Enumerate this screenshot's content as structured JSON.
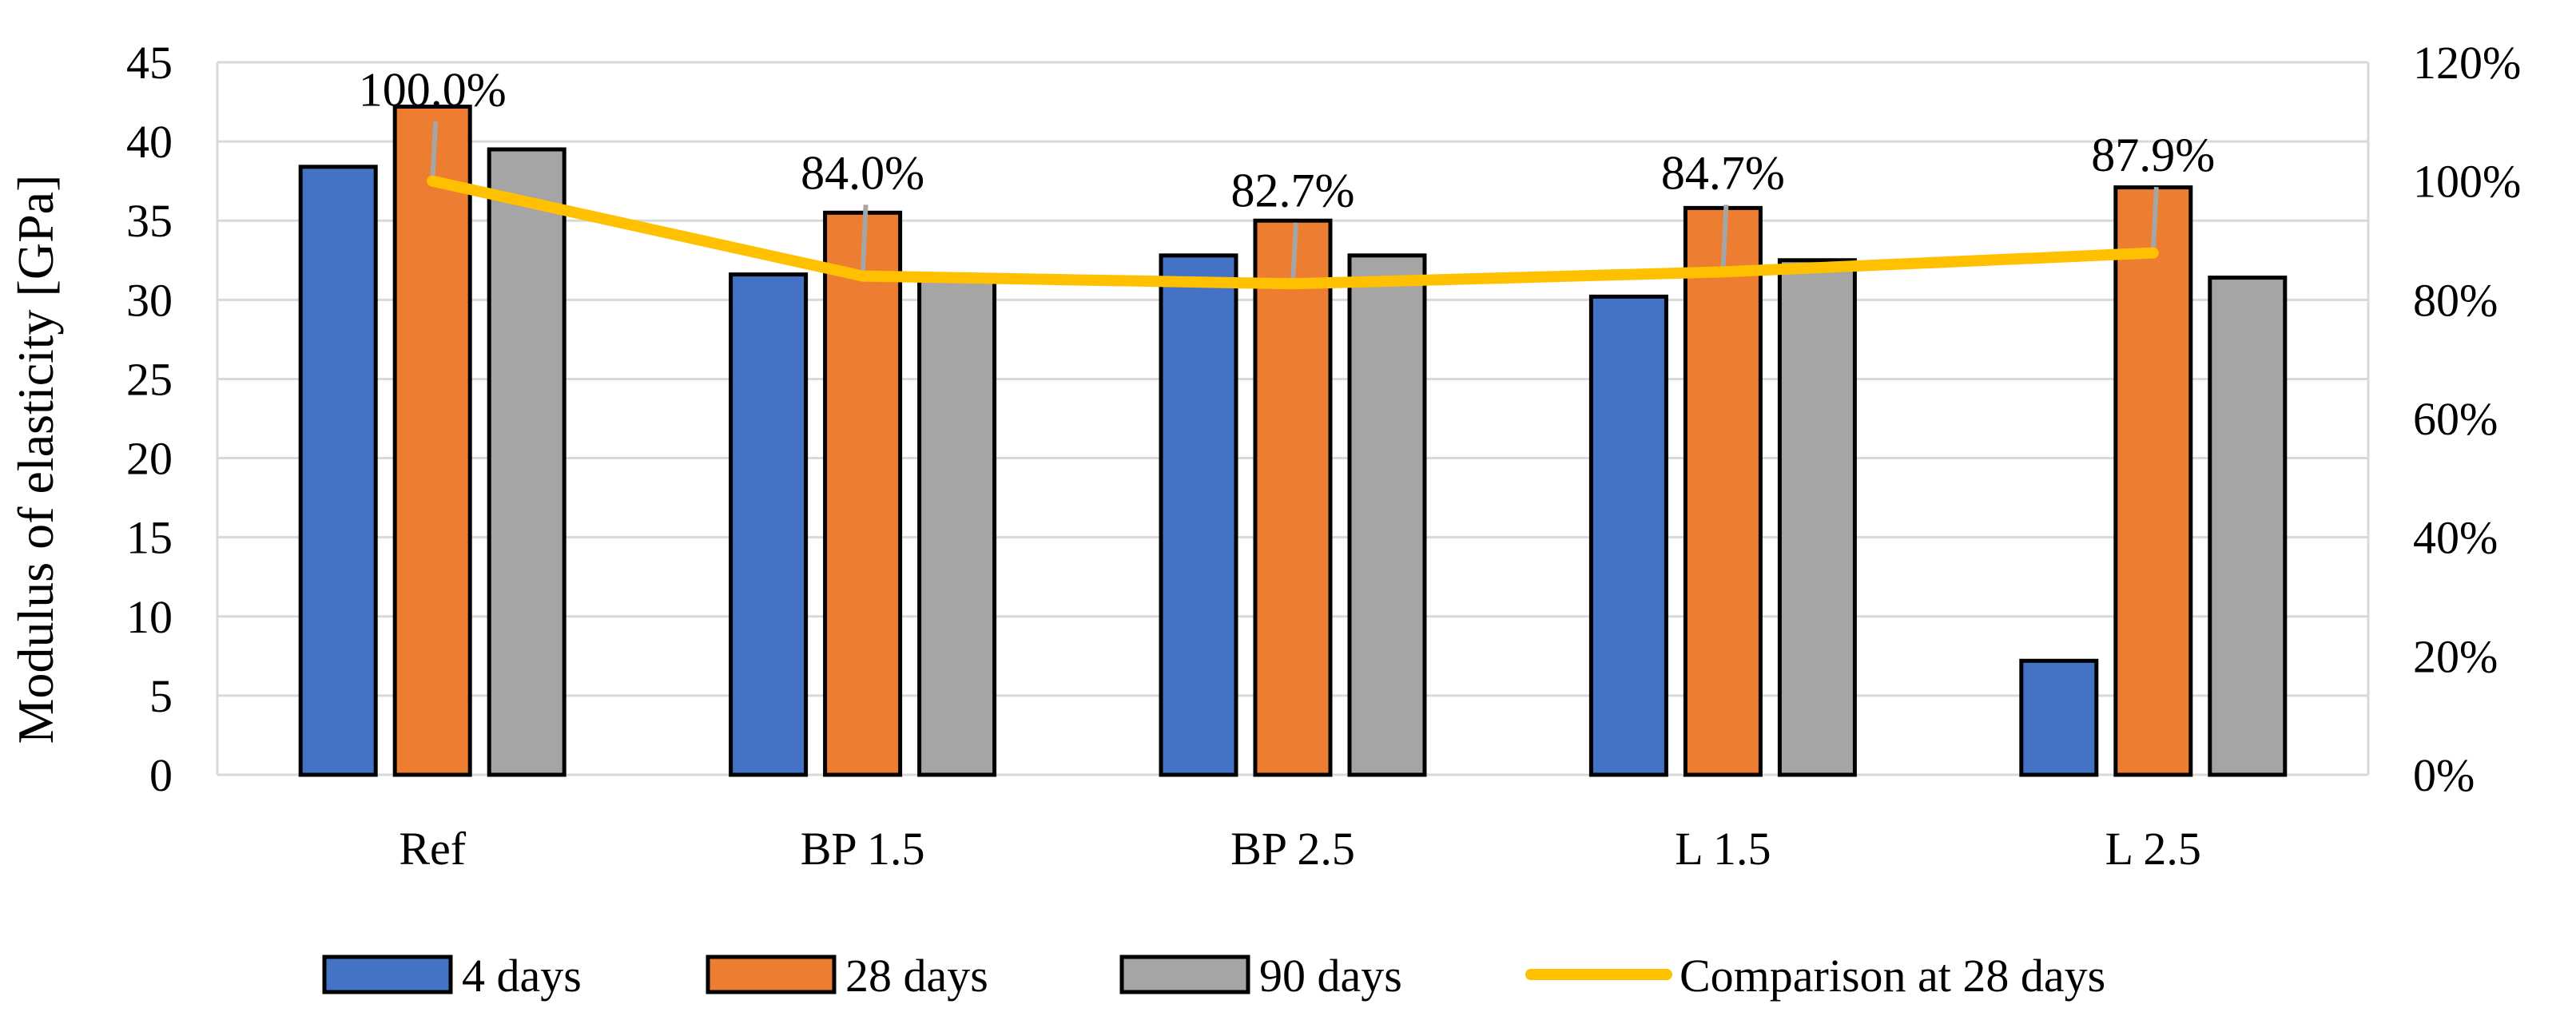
{
  "chart_data": {
    "type": "bar",
    "categories": [
      "Ref",
      "BP 1.5",
      "BP 2.5",
      "L 1.5",
      "L 2.5"
    ],
    "series": [
      {
        "name": "4 days",
        "type": "bar",
        "axis": "left",
        "values": [
          38.4,
          31.6,
          32.8,
          30.2,
          7.2
        ]
      },
      {
        "name": "28 days",
        "type": "bar",
        "axis": "left",
        "values": [
          42.2,
          35.5,
          35.0,
          35.8,
          37.1
        ]
      },
      {
        "name": "90 days",
        "type": "bar",
        "axis": "left",
        "values": [
          39.5,
          31.4,
          32.8,
          32.5,
          31.4
        ]
      },
      {
        "name": "Comparison at 28 days",
        "type": "line",
        "axis": "right",
        "values": [
          100.0,
          84.0,
          82.7,
          84.7,
          87.9
        ]
      }
    ],
    "data_labels": [
      "100.0%",
      "84.0%",
      "82.7%",
      "84.7%",
      "87.9%"
    ],
    "ylabel": "Modulus of elasticity [GPa]",
    "ylim": [
      0,
      45
    ],
    "yticks": [
      "0",
      "5",
      "10",
      "15",
      "20",
      "25",
      "30",
      "35",
      "40",
      "45"
    ],
    "y2lim": [
      0,
      120
    ],
    "y2ticks": [
      "0%",
      "20%",
      "40%",
      "60%",
      "80%",
      "100%",
      "120%"
    ],
    "grid": true,
    "legend_position": "bottom",
    "colors": {
      "4 days": "#4472C4",
      "28 days": "#ED7D31",
      "90 days": "#A5A5A5",
      "Comparison at 28 days": "#FFC000",
      "grid": "#D9D9D9",
      "error_bar": "#A5A5A5"
    }
  }
}
